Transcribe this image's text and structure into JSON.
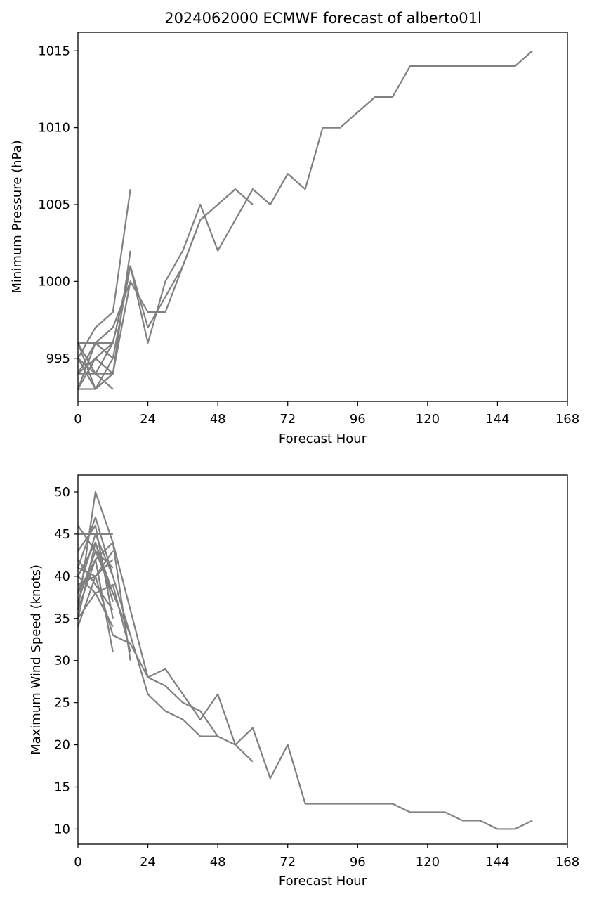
{
  "title": "2024062000 ECMWF forecast of alberto01l",
  "chart_data": [
    {
      "type": "line",
      "title": "2024062000 ECMWF forecast of alberto01l",
      "xlabel": "Forecast Hour",
      "ylabel": "Minimum Pressure (hPa)",
      "xlim": [
        0,
        168
      ],
      "ylim": [
        992.2,
        1016.2
      ],
      "xticks": [
        0,
        24,
        48,
        72,
        96,
        120,
        144,
        168
      ],
      "yticks": [
        995,
        1000,
        1005,
        1010,
        1015
      ],
      "line_color": "#808080",
      "grid": false,
      "series": [
        {
          "x": [
            0,
            6,
            12,
            18
          ],
          "y": [
            995,
            997,
            998,
            1006
          ]
        },
        {
          "x": [
            0,
            6,
            12,
            18,
            24,
            30,
            36,
            42,
            48,
            54,
            60,
            66,
            72,
            78,
            84,
            90,
            96,
            102,
            108,
            114,
            120,
            126,
            132,
            138,
            144,
            150,
            156
          ],
          "y": [
            996,
            996,
            996,
            1001,
            996,
            1000,
            1002,
            1005,
            1002,
            1004,
            1006,
            1005,
            1007,
            1006,
            1010,
            1010,
            1011,
            1012,
            1012,
            1014,
            1014,
            1014,
            1014,
            1014,
            1014,
            1014,
            1015
          ]
        },
        {
          "x": [
            0,
            6,
            12,
            18,
            24,
            30,
            36,
            42,
            48,
            54,
            60
          ],
          "y": [
            994,
            996,
            997,
            1000,
            998,
            998,
            1001,
            1004,
            1005,
            1006,
            1005
          ]
        },
        {
          "x": [
            0,
            6,
            12,
            18,
            24,
            30,
            36,
            42
          ],
          "y": [
            993,
            993,
            995,
            1001,
            997,
            999,
            1001,
            1004
          ]
        },
        {
          "x": [
            0,
            6,
            12,
            18
          ],
          "y": [
            993,
            995,
            994,
            1002
          ]
        },
        {
          "x": [
            0,
            6,
            12,
            18
          ],
          "y": [
            994,
            994,
            994,
            1000
          ]
        },
        {
          "x": [
            0,
            6,
            12,
            18
          ],
          "y": [
            995,
            994,
            996,
            1001
          ]
        },
        {
          "x": [
            0,
            6,
            12
          ],
          "y": [
            996,
            993,
            994
          ]
        },
        {
          "x": [
            0,
            6,
            12
          ],
          "y": [
            993,
            996,
            995
          ]
        },
        {
          "x": [
            0,
            6,
            12
          ],
          "y": [
            994,
            995,
            996
          ]
        },
        {
          "x": [
            0,
            6,
            12
          ],
          "y": [
            995,
            993,
            994
          ]
        },
        {
          "x": [
            0,
            6,
            12
          ],
          "y": [
            996,
            994,
            993
          ]
        },
        {
          "x": [
            0,
            6,
            12
          ],
          "y": [
            994,
            996,
            995
          ]
        }
      ]
    },
    {
      "type": "line",
      "xlabel": "Forecast Hour",
      "ylabel": "Maximum Wind Speed (knots)",
      "xlim": [
        0,
        168
      ],
      "ylim": [
        8.2,
        52
      ],
      "xticks": [
        0,
        24,
        48,
        72,
        96,
        120,
        144,
        168
      ],
      "yticks": [
        10,
        15,
        20,
        25,
        30,
        35,
        40,
        45,
        50
      ],
      "line_color": "#808080",
      "grid": false,
      "series": [
        {
          "x": [
            0,
            6,
            12,
            18,
            24,
            30,
            36,
            42,
            48,
            54,
            60,
            66,
            72,
            78,
            84,
            90,
            96,
            102,
            108,
            114,
            120,
            126,
            132,
            138,
            144,
            150,
            156
          ],
          "y": [
            34,
            40,
            33,
            32,
            28,
            29,
            26,
            23,
            26,
            20,
            22,
            16,
            20,
            13,
            13,
            13,
            13,
            13,
            13,
            12,
            12,
            12,
            11,
            11,
            10,
            10,
            11
          ]
        },
        {
          "x": [
            0,
            6,
            12,
            18,
            24,
            30,
            36,
            42,
            48
          ],
          "y": [
            36,
            50,
            44,
            36,
            28,
            27,
            25,
            24,
            21
          ]
        },
        {
          "x": [
            0,
            6,
            12,
            18,
            24,
            30,
            36,
            42,
            48,
            54,
            60
          ],
          "y": [
            38,
            45,
            40,
            33,
            26,
            24,
            23,
            21,
            21,
            20,
            18
          ]
        },
        {
          "x": [
            0,
            6,
            12
          ],
          "y": [
            46,
            43,
            41
          ]
        },
        {
          "x": [
            0,
            6,
            12
          ],
          "y": [
            45,
            45,
            45
          ]
        },
        {
          "x": [
            0,
            6,
            12
          ],
          "y": [
            38,
            42,
            31
          ]
        },
        {
          "x": [
            0,
            6,
            12
          ],
          "y": [
            42,
            39,
            36
          ]
        },
        {
          "x": [
            0,
            6,
            12
          ],
          "y": [
            40,
            44,
            37
          ]
        },
        {
          "x": [
            0,
            6,
            12
          ],
          "y": [
            35,
            38,
            34
          ]
        },
        {
          "x": [
            0,
            6,
            12
          ],
          "y": [
            41,
            47,
            40
          ]
        },
        {
          "x": [
            0,
            6,
            12
          ],
          "y": [
            37,
            43,
            38
          ]
        },
        {
          "x": [
            0,
            6,
            12
          ],
          "y": [
            39,
            40,
            43
          ]
        },
        {
          "x": [
            0,
            6,
            12,
            18
          ],
          "y": [
            36,
            42,
            44,
            30
          ]
        },
        {
          "x": [
            0,
            6,
            12,
            18
          ],
          "y": [
            40,
            38,
            39,
            31
          ]
        },
        {
          "x": [
            0,
            6,
            12,
            18
          ],
          "y": [
            35,
            44,
            38,
            33
          ]
        },
        {
          "x": [
            0,
            6,
            12
          ],
          "y": [
            43,
            46,
            35
          ]
        },
        {
          "x": [
            0,
            6,
            12
          ],
          "y": [
            41,
            40,
            42
          ]
        }
      ]
    }
  ]
}
